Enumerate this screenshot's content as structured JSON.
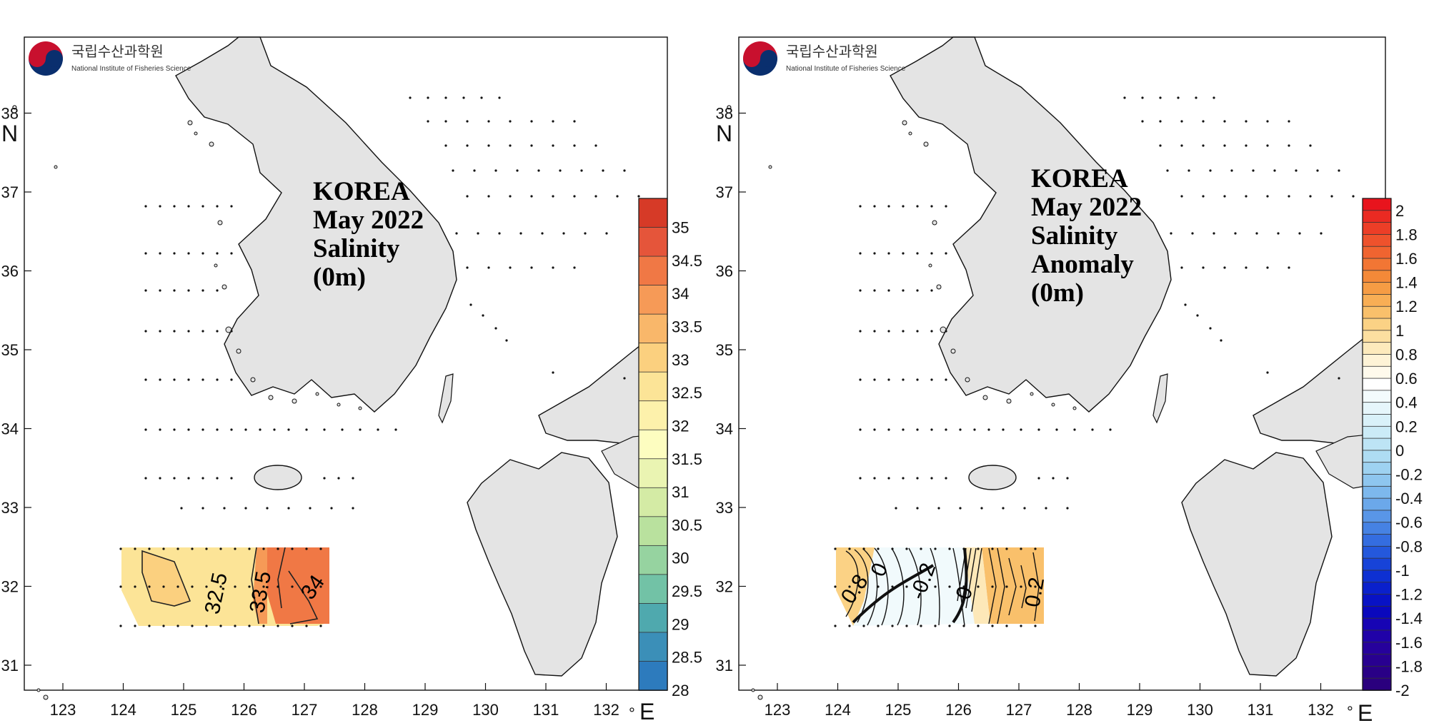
{
  "panels": [
    {
      "id": "salinity",
      "logo": {
        "korean": "국립수산과학원",
        "english": "National Institute of Fisheries Science"
      },
      "title_lines": [
        "KOREA",
        "May 2022",
        "Salinity",
        "(0m)"
      ],
      "x_ticks": [
        "123",
        "124",
        "125",
        "126",
        "127",
        "128",
        "129",
        "130",
        "131",
        "132"
      ],
      "y_ticks": [
        "31",
        "32",
        "33",
        "34",
        "35",
        "36",
        "37",
        "38"
      ],
      "x_unit": "E",
      "y_unit": "N",
      "contour_labels": [
        "32.5",
        "33.5",
        "34"
      ],
      "colorbar": {
        "labels": [
          "35",
          "34.5",
          "34",
          "33.5",
          "33",
          "32.5",
          "32",
          "31.5",
          "31",
          "30.5",
          "30",
          "29.5",
          "29",
          "28.5",
          "28"
        ],
        "colors": [
          "#d63a27",
          "#e5553a",
          "#f07845",
          "#f69a57",
          "#f9b76a",
          "#fbd07f",
          "#fce497",
          "#fdf1ab",
          "#fdfdc0",
          "#eaf4b2",
          "#d4eba5",
          "#b9e19e",
          "#96d3a0",
          "#72c2a6",
          "#4fa9ae",
          "#3b8fb8",
          "#2d7bbd"
        ]
      }
    },
    {
      "id": "anomaly",
      "logo": {
        "korean": "국립수산과학원",
        "english": "National Institute of Fisheries Science"
      },
      "title_lines": [
        "KOREA",
        "May 2022",
        "Salinity",
        "Anomaly",
        "(0m)"
      ],
      "x_ticks": [
        "123",
        "124",
        "125",
        "126",
        "127",
        "128",
        "129",
        "130",
        "131",
        "132"
      ],
      "y_ticks": [
        "31",
        "32",
        "33",
        "34",
        "35",
        "36",
        "37",
        "38"
      ],
      "x_unit": "E",
      "y_unit": "N",
      "contour_labels": [
        "0.8",
        "0",
        "-0.2",
        "0.2",
        "0"
      ],
      "colorbar": {
        "labels": [
          "2",
          "1.8",
          "1.6",
          "1.4",
          "1.2",
          "1",
          "0.8",
          "0.6",
          "0.4",
          "0.2",
          "0",
          "-0.2",
          "-0.4",
          "-0.6",
          "-0.8",
          "-1",
          "-1.2",
          "-1.4",
          "-1.6",
          "-1.8",
          "-2"
        ],
        "colors": [
          "#e8141d",
          "#ea2a22",
          "#ec3e27",
          "#ee522c",
          "#f06430",
          "#f27634",
          "#f48938",
          "#f69c44",
          "#f8ae55",
          "#f9c06b",
          "#fbd285",
          "#fcdfa0",
          "#fdeabc",
          "#fef3d6",
          "#fffaec",
          "#ffffff",
          "#f3fbfd",
          "#e6f6fb",
          "#d9f1f9",
          "#cbebf7",
          "#bde4f5",
          "#aedcf3",
          "#9ed2f1",
          "#8ec6ef",
          "#7db8ed",
          "#6ba8ea",
          "#5996e7",
          "#4682e3",
          "#346de0",
          "#2458dc",
          "#1743d8",
          "#0e30d2",
          "#0a20cc",
          "#0812c5",
          "#0a08bd",
          "#1704b4",
          "#2002a8",
          "#26019c",
          "#280090",
          "#290086",
          "#2a007e"
        ]
      }
    }
  ]
}
